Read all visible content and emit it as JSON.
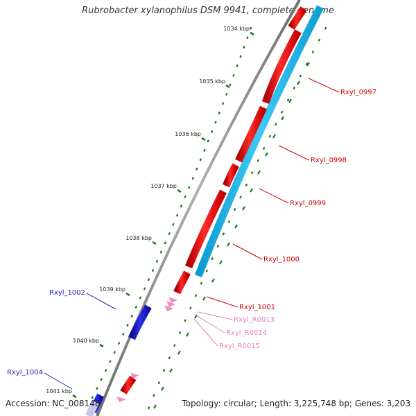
{
  "title": "Rubrobacter xylanophilus DSM 9941, complete genome",
  "footer": {
    "accession": "Accession: NC_008148",
    "summary": "Topology: circular; Length: 3,225,748 bp; Genes: 3,203"
  },
  "colors": {
    "backbone": "#8a8a8a",
    "forward_gene": "#ee1111",
    "reverse_gene": "#2222cc",
    "cds_strip": "#22b9ee",
    "rna": "#f28dc0",
    "tick": "#1d7a1d"
  },
  "ruler": [
    {
      "label": "1034 kbp"
    },
    {
      "label": "1035 kbp"
    },
    {
      "label": "1036 kbp"
    },
    {
      "label": "1037 kbp"
    },
    {
      "label": "1038 kbp"
    },
    {
      "label": "1039 kbp"
    },
    {
      "label": "1040 kbp"
    },
    {
      "label": "1041 kbp"
    }
  ],
  "genes": [
    {
      "name": "Rxyl_0997",
      "strand": "forward"
    },
    {
      "name": "Rxyl_0998",
      "strand": "forward"
    },
    {
      "name": "Rxyl_0999",
      "strand": "forward"
    },
    {
      "name": "Rxyl_1000",
      "strand": "forward"
    },
    {
      "name": "Rxyl_1001",
      "strand": "forward"
    },
    {
      "name": "Rxyl_R0013",
      "strand": "rna"
    },
    {
      "name": "Rxyl_R0014",
      "strand": "rna"
    },
    {
      "name": "Rxyl_R0015",
      "strand": "rna"
    },
    {
      "name": "Rxyl_1002",
      "strand": "reverse"
    },
    {
      "name": "Rxyl_1004",
      "strand": "reverse"
    }
  ]
}
